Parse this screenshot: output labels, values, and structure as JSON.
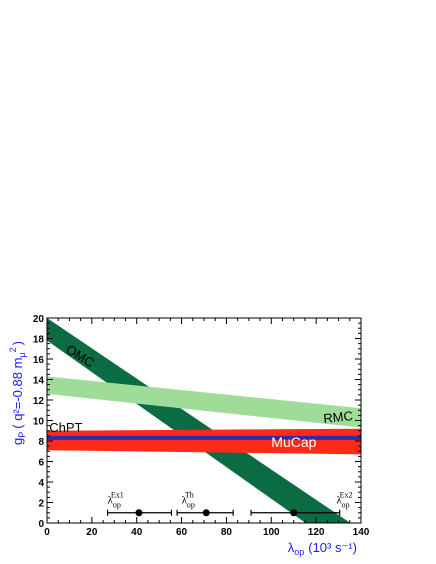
{
  "chart_data": {
    "type": "area",
    "xlabel_main": "λ",
    "xlabel_sub": "op",
    "xlabel_units": "(10³ s⁻¹)",
    "ylabel": "g",
    "ylabel_sub": "P",
    "ylabel_arg": "( q²=-0.88 m",
    "ylabel_arg_sub": "μ",
    "ylabel_arg_sup": "2",
    "ylabel_close": ")",
    "xlim": [
      0,
      140
    ],
    "ylim": [
      0,
      20
    ],
    "xticks": [
      0,
      20,
      40,
      60,
      80,
      100,
      120,
      140
    ],
    "yticks": [
      0,
      2,
      4,
      6,
      8,
      10,
      12,
      14,
      16,
      18,
      20
    ],
    "bands": [
      {
        "name": "OMC",
        "color": "#0b6b42",
        "x": [
          0,
          138
        ],
        "lower": [
          17.8,
          -3.5
        ],
        "upper": [
          20.0,
          -0.4
        ]
      },
      {
        "name": "RMC",
        "color": "#9fdc9a",
        "x": [
          0,
          140
        ],
        "lower": [
          12.6,
          9.3
        ],
        "upper": [
          14.3,
          11.2
        ]
      },
      {
        "name": "MuCap",
        "color": "#ff2a1a",
        "x": [
          0,
          140
        ],
        "lower": [
          7.1,
          6.7
        ],
        "upper": [
          9.0,
          9.2
        ]
      }
    ],
    "lines": [
      {
        "name": "ChPT",
        "color": "#2b2bb0",
        "x": [
          0,
          140
        ],
        "y": [
          8.3,
          8.3
        ],
        "width": 4
      }
    ],
    "band_labels": [
      {
        "text": "OMC",
        "x": 8,
        "y": 16.7,
        "rotate": 32,
        "color": "#000"
      },
      {
        "text": "RMC",
        "x": 130,
        "y": 9.9,
        "rotate": -6,
        "color": "#000"
      },
      {
        "text": "ChPT",
        "x": 1,
        "y": 8.9,
        "rotate": 0,
        "color": "#000"
      },
      {
        "text": "MuCap",
        "x": 100,
        "y": 7.4,
        "rotate": 0,
        "color": "#fff"
      }
    ],
    "points": [
      {
        "label": "λ",
        "label_sub": "op",
        "label_sup": "Ex1",
        "x": 41.0,
        "xerr_low": 27.0,
        "xerr_high": 55.5,
        "y": 1.0,
        "label_x": 27,
        "label_y": 1.9
      },
      {
        "label": "λ",
        "label_sub": "op",
        "label_sup": "Th",
        "x": 71.0,
        "xerr_low": 58.0,
        "xerr_high": 83.0,
        "y": 1.0,
        "label_x": 60,
        "label_y": 1.9
      },
      {
        "label": "λ",
        "label_sub": "op",
        "label_sup": "Ex2",
        "x": 110.0,
        "xerr_low": 91.0,
        "xerr_high": 130.5,
        "y": 1.0,
        "label_x": 129,
        "label_y": 1.9
      }
    ]
  }
}
